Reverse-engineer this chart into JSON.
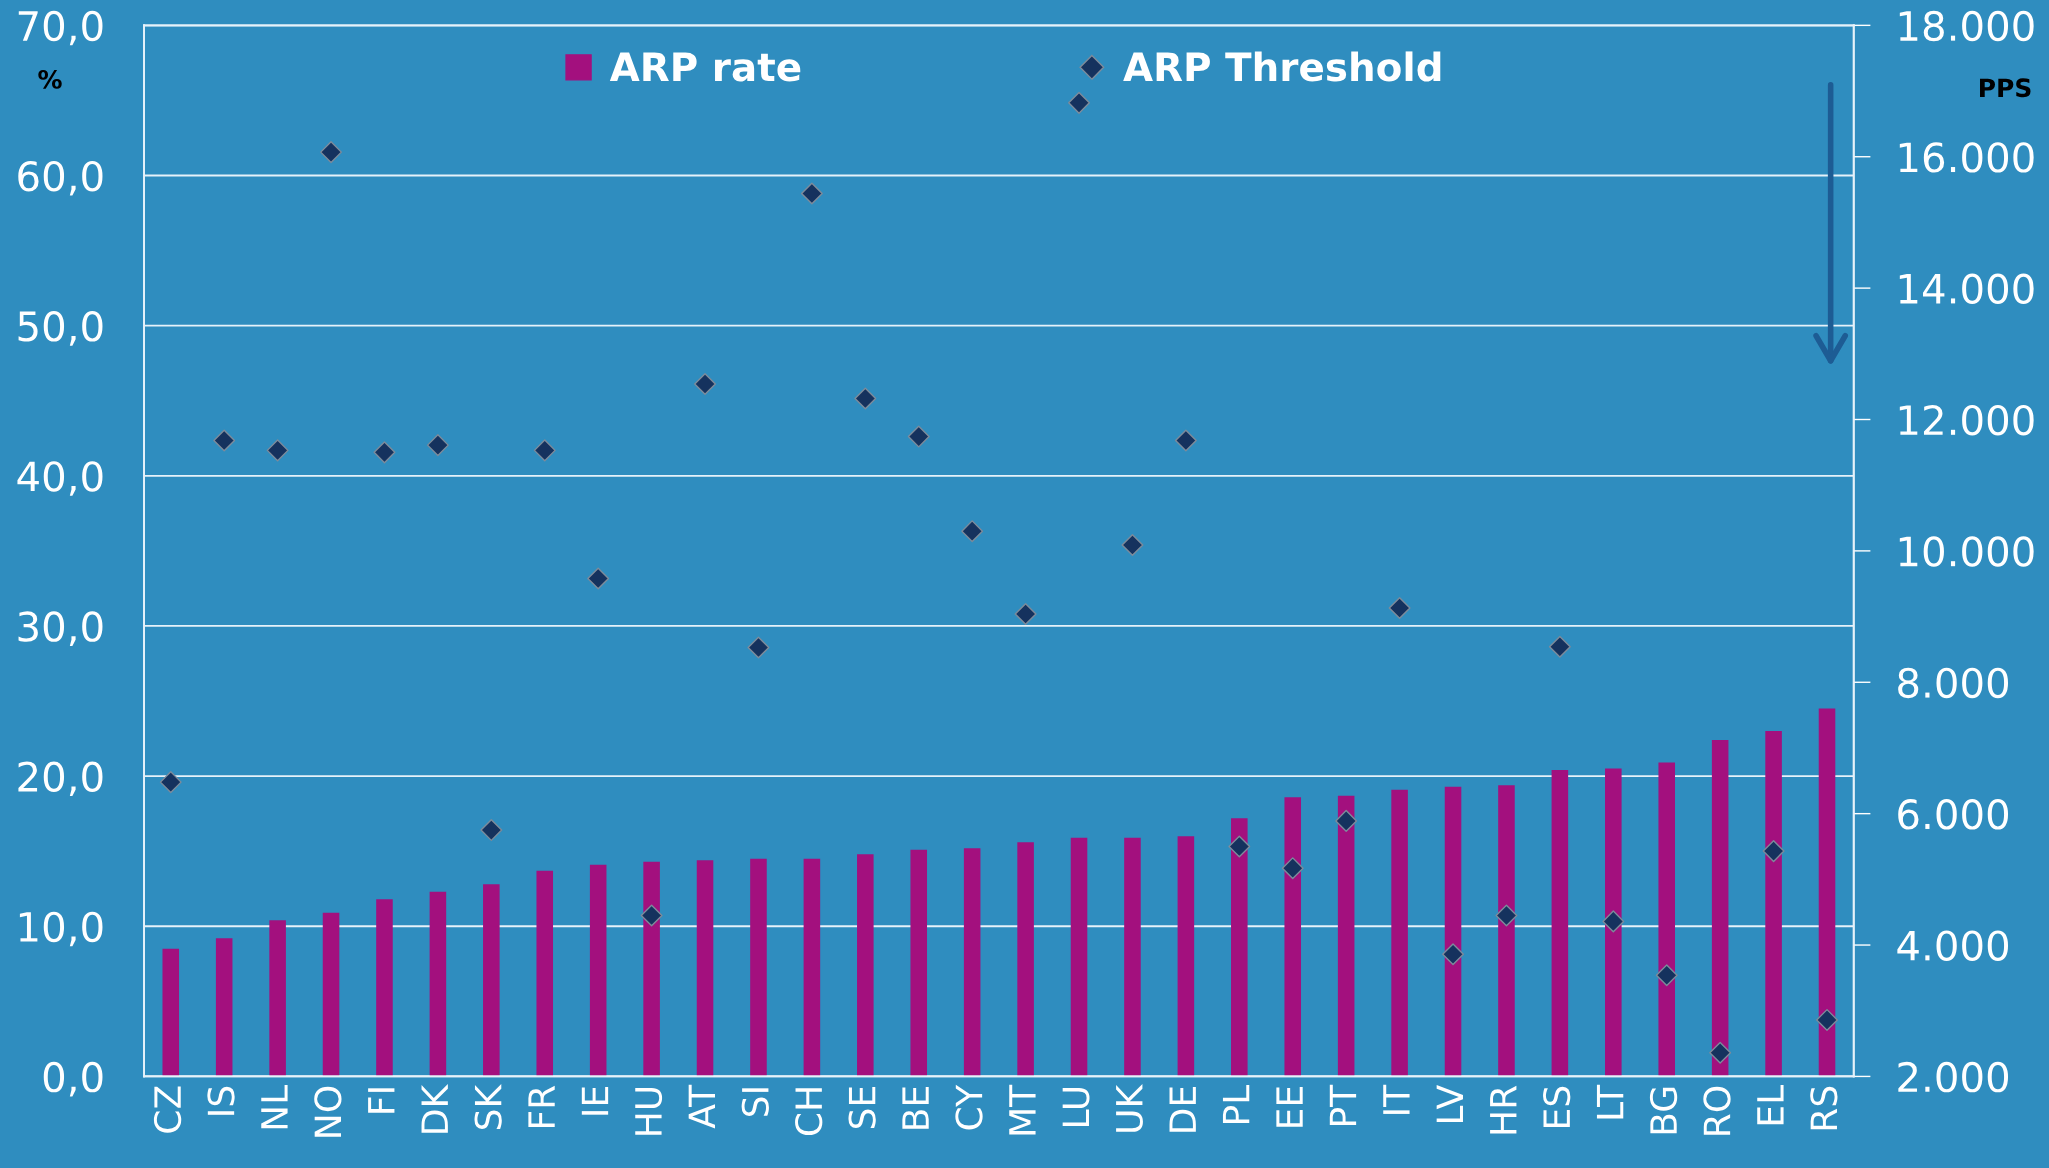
{
  "chart_data": {
    "type": "bar",
    "categories": [
      "CZ",
      "IS",
      "NL",
      "NO",
      "FI",
      "DK",
      "SK",
      "FR",
      "IE",
      "HU",
      "AT",
      "SI",
      "CH",
      "SE",
      "BE",
      "CY",
      "MT",
      "LU",
      "UK",
      "DE",
      "PL",
      "EE",
      "PT",
      "IT",
      "LV",
      "HR",
      "ES",
      "LT",
      "BG",
      "RO",
      "EL",
      "RS"
    ],
    "series": [
      {
        "name": "ARP rate",
        "color": "#a3107e",
        "values": [
          8.5,
          9.2,
          10.4,
          10.9,
          11.8,
          12.3,
          12.8,
          13.7,
          14.1,
          14.3,
          14.4,
          14.5,
          14.5,
          14.8,
          15.1,
          15.2,
          15.6,
          15.9,
          15.9,
          16.0,
          17.2,
          18.6,
          18.7,
          19.1,
          19.3,
          19.4,
          20.4,
          20.5,
          20.9,
          22.4,
          23.0,
          24.5
        ]
      },
      {
        "name": "ARP Threshold",
        "type": "scatter",
        "axis": "y2",
        "color": "#15325e",
        "values": [
          6480,
          11680,
          11530,
          16070,
          11500,
          11610,
          5750,
          11530,
          9580,
          4450,
          12540,
          8530,
          15440,
          12320,
          11740,
          10300,
          9040,
          16820,
          10090,
          11680,
          5500,
          5170,
          5890,
          9130,
          3860,
          4450,
          8540,
          4360,
          3540,
          2360,
          5430,
          2860
        ]
      }
    ],
    "ylabel": "%",
    "y2label": "PPS",
    "ylim": [
      0,
      70
    ],
    "yticks": [
      {
        "value": 0,
        "label": "0,0"
      },
      {
        "value": 10,
        "label": "10,0"
      },
      {
        "value": 20,
        "label": "20,0"
      },
      {
        "value": 30,
        "label": "30,0"
      },
      {
        "value": 40,
        "label": "40,0"
      },
      {
        "value": 50,
        "label": "50,0"
      },
      {
        "value": 60,
        "label": "60,0"
      },
      {
        "value": 70,
        "label": "70,0"
      }
    ],
    "y2lim": [
      2000,
      18000
    ],
    "y2ticks": [
      {
        "value": 2000,
        "label": "2.000"
      },
      {
        "value": 4000,
        "label": "4.000"
      },
      {
        "value": 6000,
        "label": "6.000"
      },
      {
        "value": 8000,
        "label": "8.000"
      },
      {
        "value": 10000,
        "label": "10.000"
      },
      {
        "value": 12000,
        "label": "12.000"
      },
      {
        "value": 14000,
        "label": "14.000"
      },
      {
        "value": 16000,
        "label": "16.000"
      },
      {
        "value": 18000,
        "label": "18.000"
      }
    ],
    "grid": "y",
    "legend": "top",
    "marker": "diamond"
  }
}
